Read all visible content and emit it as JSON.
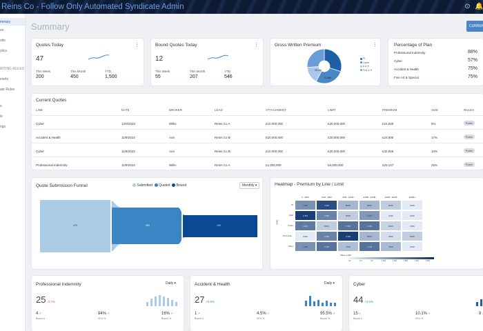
{
  "header": {
    "title": "Reins Co - Follow Only Automated Syndicate Admin"
  },
  "sidebar": {
    "items": [
      {
        "label": "mmary",
        "active": true
      },
      {
        "label": "es"
      },
      {
        "label": "olio"
      },
      {
        "label": "ytics"
      },
      {
        "label": "RITING RULES",
        "section": true
      },
      {
        "label": "esets"
      },
      {
        "label": "ate Rules"
      },
      {
        "label": "s"
      },
      {
        "label": "le"
      },
      {
        "label": "ngs"
      }
    ]
  },
  "page": {
    "title": "Summary",
    "current_button": "CURRENT"
  },
  "quotes_today": {
    "title": "Quotes Today",
    "value": "47",
    "this_week_label": "This Week",
    "this_week": "200",
    "this_month_label": "This Month",
    "this_month": "450",
    "ytd_label": "YTD",
    "ytd": "1,500"
  },
  "bound_today": {
    "title": "Bound Quotes Today",
    "value": "12",
    "this_week_label": "This Week",
    "this_week": "55",
    "this_month_label": "This Month",
    "this_month": "207",
    "ytd_label": "YTD",
    "ytd": "546"
  },
  "gwp": {
    "title": "Gross Written Premium",
    "legend": [
      "PI",
      "Cyber",
      "A & H",
      "Prof & S"
    ],
    "slices": [
      {
        "label": "PI",
        "value": 30,
        "color": "#1f5fa8"
      },
      {
        "label": "Cyber",
        "value": 27.9,
        "color": "#4a86c8"
      },
      {
        "label": "A & H",
        "value": 16,
        "color": "#a9c7e8"
      },
      {
        "label": "Prof & S",
        "value": 26.1,
        "color": "#6a9ed4"
      }
    ],
    "slice_labels": [
      "26.1M",
      "27.9M"
    ]
  },
  "plan": {
    "title": "Percentage of Plan",
    "rows": [
      {
        "label": "Professional Indemnity",
        "pct": "88%"
      },
      {
        "label": "Cyber",
        "pct": "57%"
      },
      {
        "label": "Accident & Health",
        "pct": "75%"
      },
      {
        "label": "Fine Art & Special",
        "pct": "75%"
      }
    ]
  },
  "current_quotes": {
    "title": "Current Quotes",
    "headers": [
      "LINE",
      "DATE",
      "BROKER",
      "LEAD",
      "ATTACHMENT",
      "LIMIT",
      "PREMIUM",
      "SIZE",
      "RULES"
    ],
    "rows": [
      [
        "Cyber",
        "12/9/2023",
        "Willis",
        "Reins Co A",
        "£10,000,000",
        "£20,000,000",
        "£15,545",
        "5%",
        "Rules"
      ],
      [
        "Accident & Health",
        "11/9/2023",
        "Aon",
        "Reins Co B",
        "£10,000,000",
        "£20,000,000",
        "£24,500",
        "17%",
        "Rules"
      ],
      [
        "Cyber",
        "11/9/2023",
        "Aon",
        "Reins Co B",
        "£10,000,000",
        "£20,000,000",
        "£32,556",
        "10%",
        "Rules"
      ],
      [
        "Professional Indemnity",
        "11/9/2023",
        "Willis",
        "Reins Co A",
        "£1,000,000",
        "£5,000,000",
        "£23,147",
        "25%",
        "Rules"
      ]
    ]
  },
  "funnel": {
    "title": "Quote Submission Funnel",
    "legend": [
      {
        "label": "Submitted",
        "color": "#a9cbe6"
      },
      {
        "label": "Quoted",
        "color": "#3a86c4"
      },
      {
        "label": "Bound",
        "color": "#0a4a94"
      }
    ],
    "period": "Monthly",
    "values": [
      "470",
      "380",
      "150"
    ]
  },
  "heatmap": {
    "title": "Heatmap - Premium by Line / Limit",
    "columns": [
      "0 - £5M",
      "£1M - £5M",
      "£5M - £10M",
      "£10M - £15M",
      "£15M - £20M",
      "£20M+"
    ],
    "rows": [
      "PI",
      "A&H",
      "Cyber",
      "Prof Inde...",
      "Other"
    ],
    "ylabel": "Line",
    "cells": [
      [
        "1.3M",
        "2.2M",
        "800K",
        "800K",
        "500K",
        "100K"
      ],
      [
        "2.4M",
        "1.5M",
        "500K",
        "1.2M",
        "100K",
        "100K"
      ],
      [
        "1.6M",
        "500K",
        "1.7M",
        "1.7M",
        "400K",
        "100K"
      ],
      [
        "100K",
        "1.5M",
        "2.4M",
        "800K",
        "250K",
        "500K"
      ],
      [
        "1.3M",
        "1.7M",
        "700K",
        "1.7M",
        "750K",
        "100K"
      ]
    ],
    "color_title": "Value in £M",
    "color_ticks": [
      "0.1",
      "0.4",
      "0.6",
      "1.0M",
      "1.4M",
      "1.8M",
      "2.2M",
      "2.6M"
    ]
  },
  "kpis": [
    {
      "title": "Professional Indemnity",
      "period": "Daily",
      "value": "25",
      "delta": "-3.7%",
      "delta_dir": "down",
      "m1": "4",
      "m1_label": "Bound #",
      "m2": "84%",
      "m2_label": "NTU %",
      "m3": "16%",
      "m3_label": "Bound %",
      "bars": [
        0.4,
        0.7,
        0.9,
        1.0,
        0.85,
        0.75,
        0.55,
        0.4
      ]
    },
    {
      "title": "Accident & Health",
      "period": "Daily",
      "value": "27",
      "delta": "+5.5%",
      "delta_dir": "up",
      "m1": "1",
      "m1_label": "Bound #",
      "m2": "4.5%",
      "m2_label": "NTU %",
      "m3": "95.5%",
      "m3_label": "Bound %",
      "bars": [
        0.5,
        0.95,
        0.45,
        0.55,
        0.3,
        0.5,
        0.3,
        0.3
      ]
    },
    {
      "title": "Cyber",
      "period": "",
      "value": "44",
      "delta": "+3.5%",
      "delta_dir": "up",
      "m1": "15",
      "m1_label": "Bound #",
      "m2": "10.1%",
      "m2_label": "NTU %",
      "m3": "8",
      "m3_label": "",
      "bars": [
        0.4,
        0.6,
        0.8,
        0.95,
        0.6
      ]
    }
  ]
}
